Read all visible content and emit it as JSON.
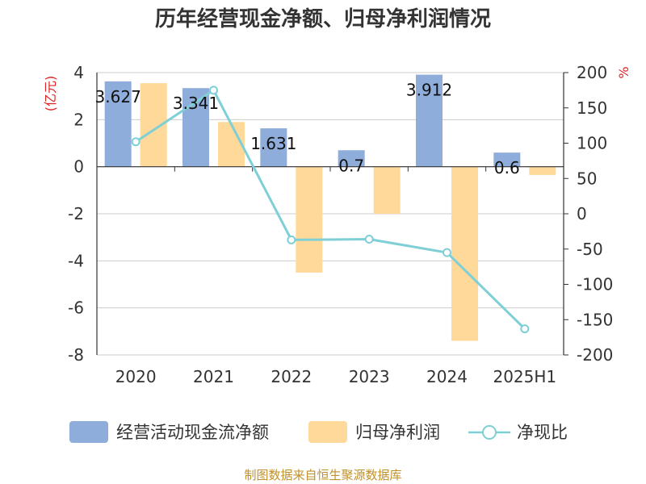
{
  "chart_data": {
    "type": "bar",
    "title": "历年经营现金净额、归母净利润情况",
    "categories": [
      "2020",
      "2021",
      "2022",
      "2023",
      "2024",
      "2025H1"
    ],
    "left_axis": {
      "unit": "(亿元)",
      "ticks": [
        "4",
        "2",
        "0",
        "-2",
        "-4",
        "-6",
        "-8"
      ],
      "ylim": [
        -8,
        4
      ]
    },
    "right_axis": {
      "unit": "%",
      "ticks": [
        "200",
        "150",
        "100",
        "50",
        "0",
        "-50",
        "-100",
        "-150",
        "-200"
      ],
      "ylim": [
        -200,
        200
      ]
    },
    "series": [
      {
        "name": "经营活动现金流净额",
        "type": "bar",
        "axis": "left",
        "color": "#8eaddb",
        "values": [
          3.627,
          3.341,
          1.631,
          0.7,
          3.912,
          0.6
        ],
        "labels": [
          "3.627",
          "3.341",
          "1.631",
          "0.7",
          "3.912",
          "0.6"
        ]
      },
      {
        "name": "归母净利润",
        "type": "bar",
        "axis": "left",
        "color": "#fed999",
        "values": [
          3.55,
          1.9,
          -4.5,
          -2.0,
          -7.4,
          -0.35
        ]
      },
      {
        "name": "净现比",
        "type": "line",
        "axis": "right",
        "color": "#7fcfd6",
        "values": [
          102,
          175,
          -37,
          -36,
          -55,
          -163
        ]
      }
    ],
    "legend_position": "bottom",
    "grid": true,
    "source": "制图数据来自恒生聚源数据库"
  }
}
